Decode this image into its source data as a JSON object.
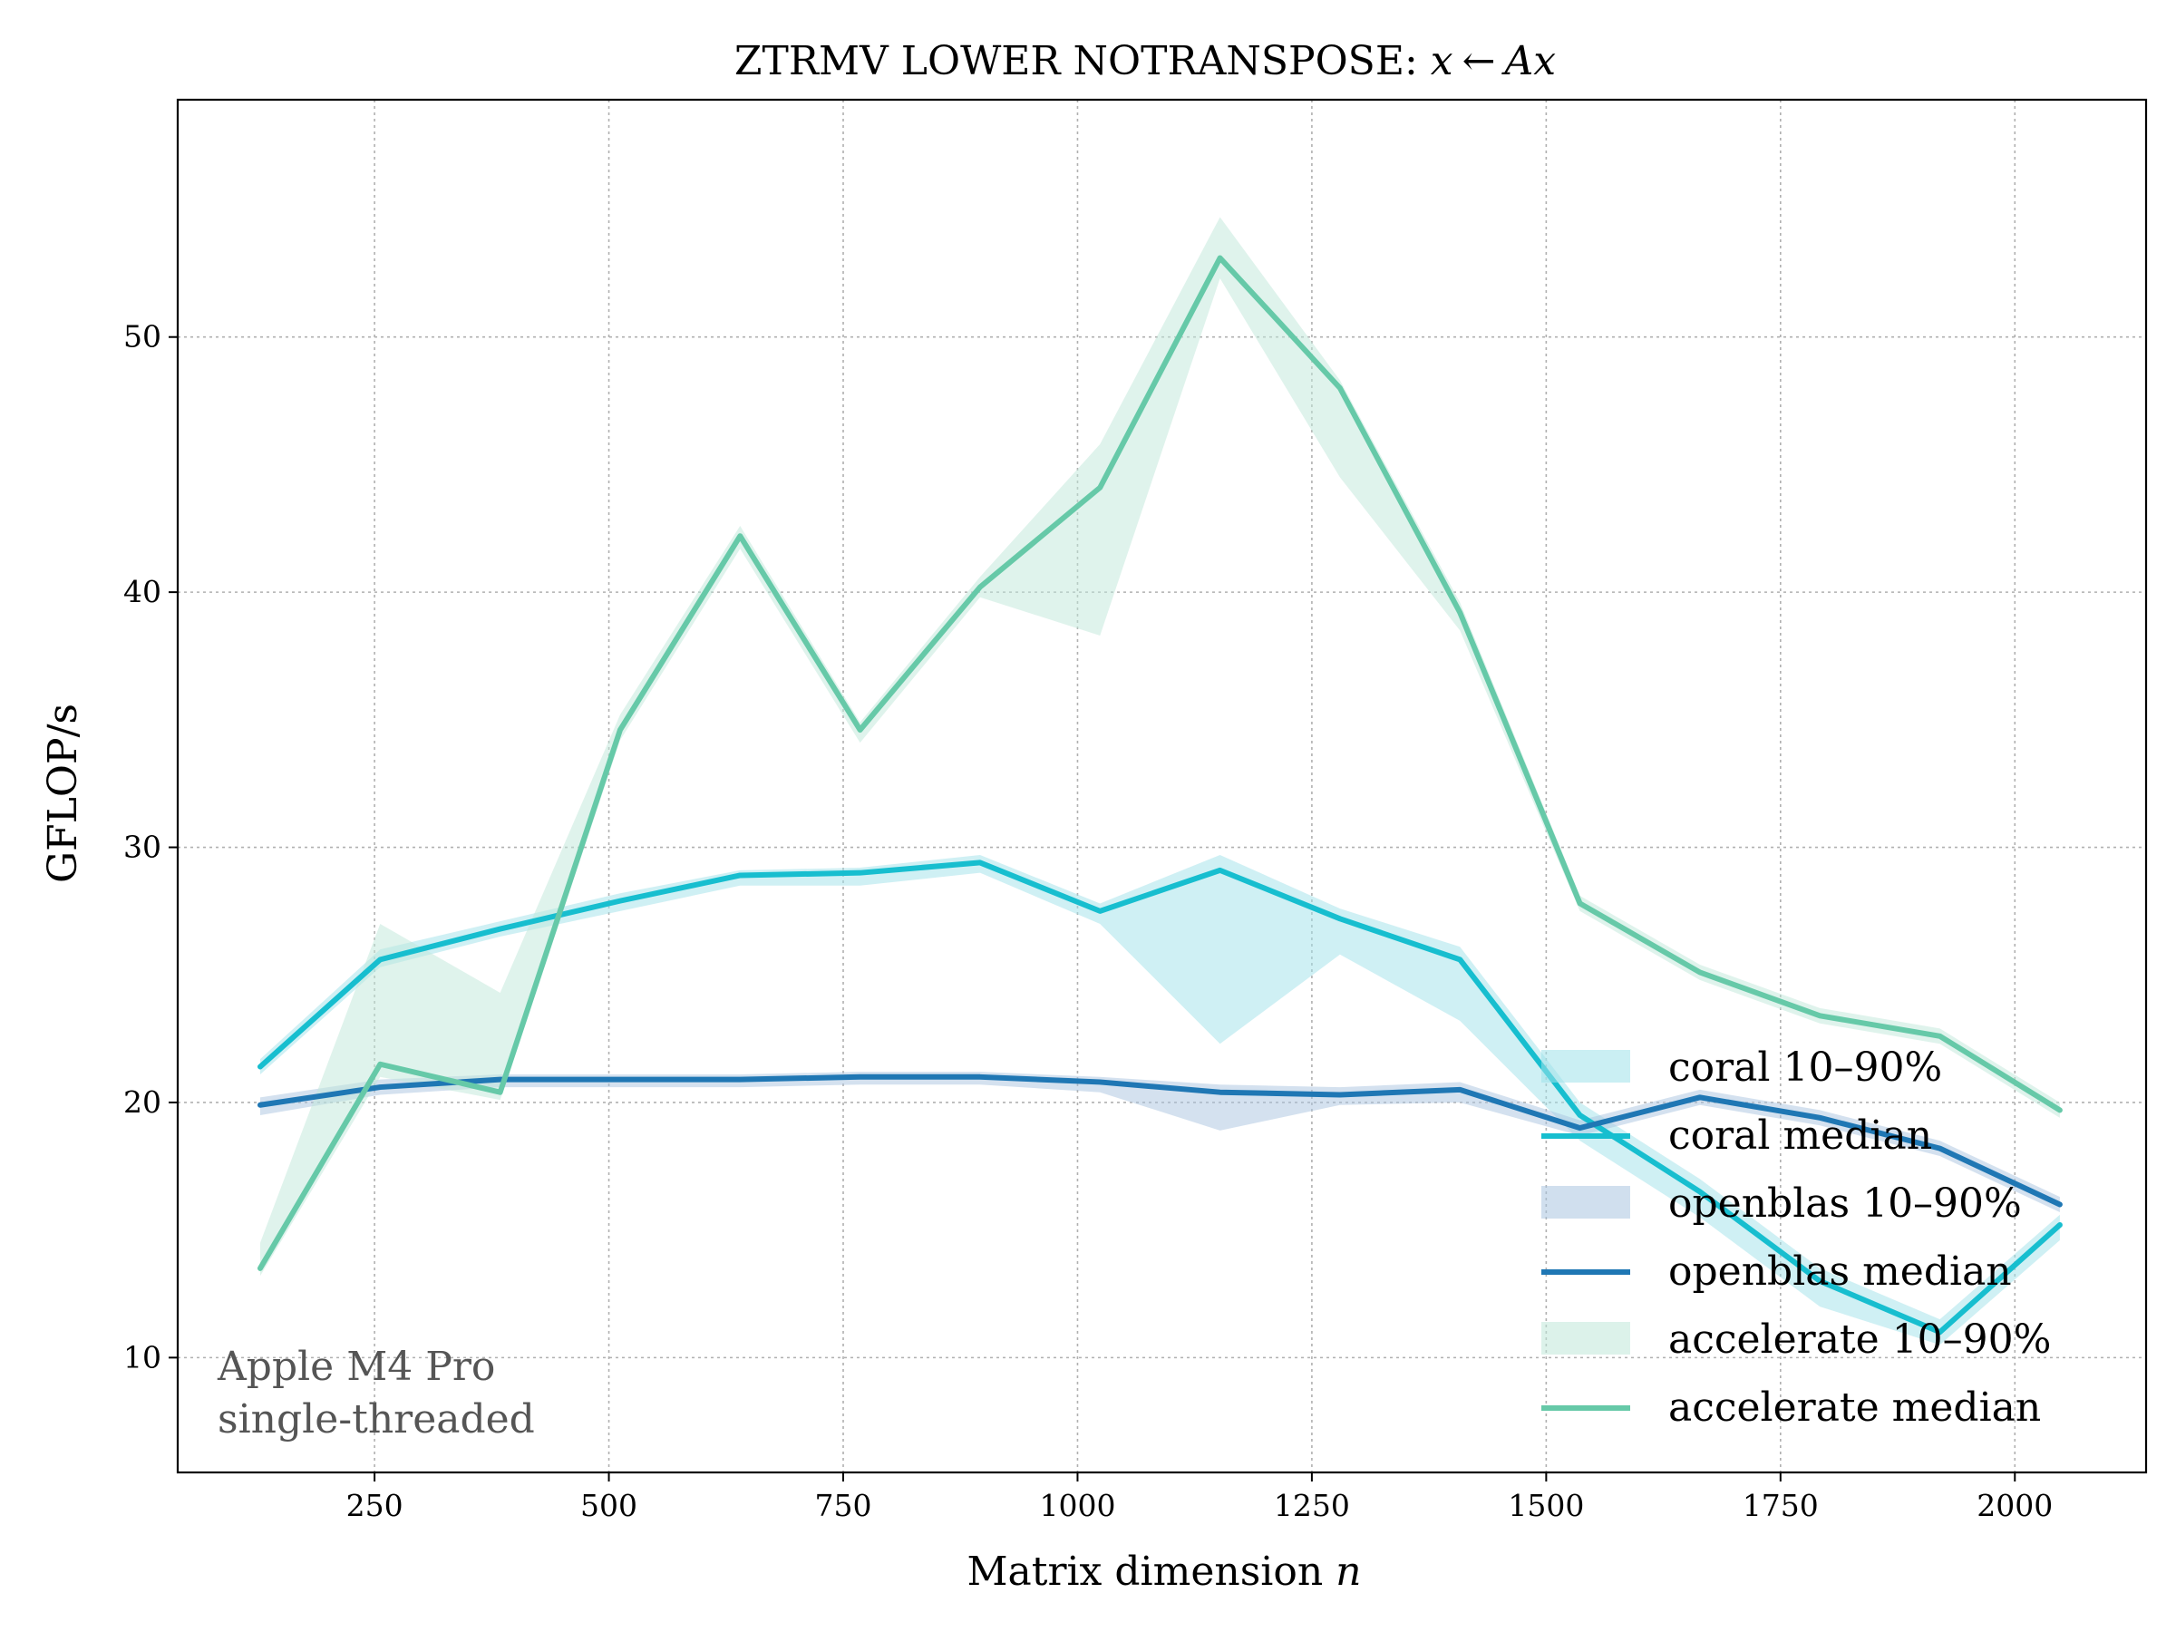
{
  "chart_data": {
    "type": "line",
    "title": "ZTRMV LOWER NOTRANSPOSE: x ← Ax",
    "title_parts": {
      "prefix": "ZTRMV LOWER NOTRANSPOSE: ",
      "math_x": "x",
      "arrow": "←",
      "math_ax": "Ax"
    },
    "xlabel": "Matrix dimension n",
    "xlabel_parts": {
      "text": "Matrix dimension ",
      "math": "n"
    },
    "ylabel": "GFLOP/s",
    "xlim": [
      40,
      2140
    ],
    "ylim": [
      5.5,
      59.3
    ],
    "xticks": [
      250,
      500,
      750,
      1000,
      1250,
      1500,
      1750,
      2000
    ],
    "yticks": [
      10,
      20,
      30,
      40,
      50
    ],
    "grid": true,
    "legend_position": "lower-right",
    "annotation": [
      "Apple M4 Pro",
      "single-threaded"
    ],
    "x": [
      128,
      256,
      384,
      512,
      640,
      768,
      896,
      1024,
      1152,
      1280,
      1408,
      1536,
      1664,
      1792,
      1920,
      2048
    ],
    "series": [
      {
        "name": "coral median",
        "band_name": "coral 10–90%",
        "color": "#17becf",
        "band_color": "#9fe1ea",
        "median": [
          21.4,
          25.6,
          26.8,
          27.9,
          28.9,
          29.0,
          29.4,
          27.5,
          29.1,
          27.2,
          25.6,
          19.5,
          16.5,
          13.0,
          11.0,
          15.2
        ],
        "p10": [
          21.1,
          25.3,
          26.5,
          27.5,
          28.5,
          28.5,
          29.0,
          27.0,
          22.3,
          25.8,
          23.2,
          18.5,
          15.5,
          12.0,
          10.5,
          14.6
        ],
        "p90": [
          21.7,
          26.0,
          27.1,
          28.2,
          29.1,
          29.2,
          29.7,
          27.8,
          29.7,
          27.6,
          26.1,
          20.0,
          17.0,
          13.5,
          11.5,
          15.6
        ]
      },
      {
        "name": "openblas median",
        "band_name": "openblas 10–90%",
        "color": "#1f77b4",
        "band_color": "#a9c4e0",
        "median": [
          19.9,
          20.6,
          20.9,
          20.9,
          20.9,
          21.0,
          21.0,
          20.8,
          20.4,
          20.3,
          20.5,
          19.0,
          20.2,
          19.4,
          18.2,
          16.0
        ],
        "p10": [
          19.5,
          20.3,
          20.6,
          20.6,
          20.6,
          20.7,
          20.7,
          20.4,
          18.9,
          19.9,
          20.0,
          18.7,
          19.9,
          19.1,
          17.9,
          15.7
        ],
        "p90": [
          20.2,
          20.9,
          21.1,
          21.1,
          21.1,
          21.2,
          21.2,
          21.0,
          20.7,
          20.6,
          20.8,
          19.3,
          20.5,
          19.7,
          18.5,
          16.3
        ]
      },
      {
        "name": "accelerate median",
        "band_name": "accelerate 10–90%",
        "color": "#66c9a8",
        "band_color": "#bfe8d9",
        "median": [
          13.5,
          21.5,
          20.4,
          34.6,
          42.2,
          34.6,
          40.2,
          44.1,
          53.1,
          48.0,
          39.2,
          27.8,
          25.1,
          23.4,
          22.6,
          19.7
        ],
        "p10": [
          13.2,
          21.0,
          20.1,
          34.2,
          41.7,
          34.1,
          39.8,
          38.3,
          52.3,
          44.5,
          38.5,
          27.5,
          24.8,
          23.1,
          22.3,
          19.4
        ],
        "p90": [
          14.5,
          27.0,
          24.3,
          35.2,
          42.6,
          34.9,
          40.6,
          45.8,
          54.7,
          48.3,
          39.6,
          28.1,
          25.4,
          23.7,
          22.9,
          20.0
        ]
      }
    ]
  }
}
